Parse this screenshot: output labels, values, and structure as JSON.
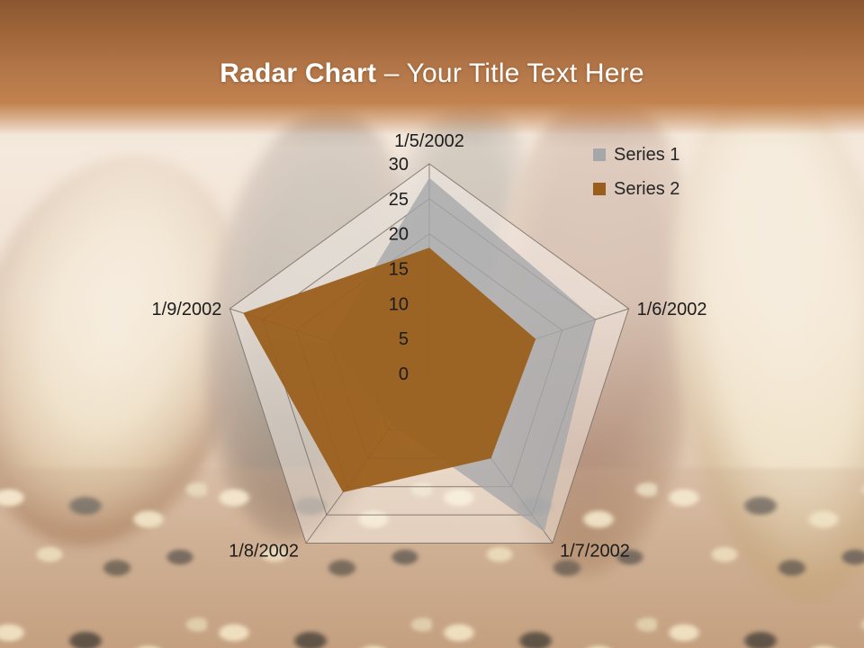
{
  "slide": {
    "title": {
      "emphasis": "Radar Chart",
      "separator": " – ",
      "rest": "Your Title Text Here"
    },
    "header_colors": {
      "top": "#8a5630",
      "bottom": "#c2824e"
    },
    "title_color": "#ffffff"
  },
  "chart_data": {
    "type": "radar",
    "title": "",
    "categories": [
      "1/5/2002",
      "1/6/2002",
      "1/7/2002",
      "1/8/2002",
      "1/9/2002"
    ],
    "series": [
      {
        "name": "Series 1",
        "color": "#a5a7a9",
        "values": [
          28,
          25,
          28,
          9,
          15
        ]
      },
      {
        "name": "Series 2",
        "color": "#9a5f1c",
        "values": [
          18,
          16,
          15,
          21,
          28
        ]
      }
    ],
    "axis": {
      "min": 0,
      "max": 30,
      "step": 5,
      "tick_labels": [
        "0",
        "5",
        "10",
        "15",
        "20",
        "25",
        "30"
      ]
    },
    "legend_position": "top-right",
    "gridlines": true,
    "grid_color": "#786e64",
    "label_color": "#1c1c1c"
  }
}
